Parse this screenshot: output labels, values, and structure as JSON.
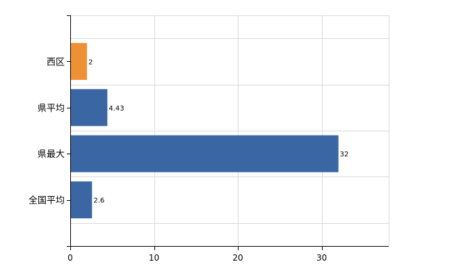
{
  "chart_data": {
    "type": "bar",
    "orientation": "horizontal",
    "categories": [
      "西区",
      "県平均",
      "県最大",
      "全国平均"
    ],
    "values": [
      2,
      4.43,
      32,
      2.6
    ],
    "data_labels": [
      "2",
      "4.43",
      "32",
      "2.6"
    ],
    "bar_colors": [
      "#ee9135",
      "#3a66a3",
      "#3a66a3",
      "#3a66a3"
    ],
    "xlim": [
      0,
      38
    ],
    "xticks": [
      0,
      10,
      20,
      30
    ],
    "grid": true,
    "title": "",
    "xlabel": "",
    "ylabel": ""
  }
}
